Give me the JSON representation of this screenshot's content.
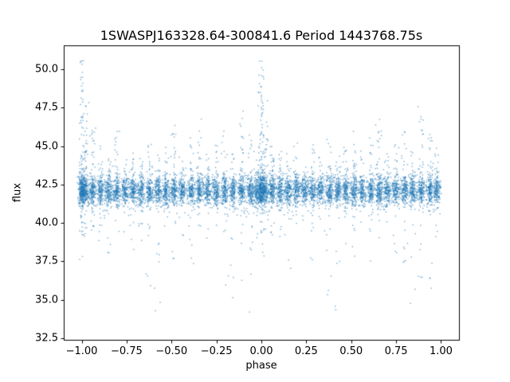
{
  "chart_data": {
    "type": "scatter",
    "title": "1SWASPJ163328.64-300841.6 Period 1443768.75s",
    "xlabel": "phase",
    "ylabel": "flux",
    "xlim": [
      -1.1,
      1.1
    ],
    "ylim": [
      32.4,
      51.5
    ],
    "grid": false,
    "legend": "none",
    "marker_color": "#1f77b4",
    "marker_alpha": 0.55,
    "marker_size_px": 1.5,
    "xticks": [
      {
        "value": -1.0,
        "label": "−1.00"
      },
      {
        "value": -0.75,
        "label": "−0.75"
      },
      {
        "value": -0.5,
        "label": "−0.50"
      },
      {
        "value": -0.25,
        "label": "−0.25"
      },
      {
        "value": 0.0,
        "label": "0.00"
      },
      {
        "value": 0.25,
        "label": "0.25"
      },
      {
        "value": 0.5,
        "label": "0.50"
      },
      {
        "value": 0.75,
        "label": "0.75"
      },
      {
        "value": 1.0,
        "label": "1.00"
      }
    ],
    "yticks": [
      {
        "value": 32.5,
        "label": "32.5"
      },
      {
        "value": 35.0,
        "label": "35.0"
      },
      {
        "value": 37.5,
        "label": "37.5"
      },
      {
        "value": 40.0,
        "label": "40.0"
      },
      {
        "value": 42.5,
        "label": "42.5"
      },
      {
        "value": 45.0,
        "label": "45.0"
      },
      {
        "value": 47.5,
        "label": "47.5"
      },
      {
        "value": 50.0,
        "label": "50.0"
      }
    ],
    "scatter_model": {
      "description": "Phase-folded light curve; each night of observations forms a vertical stripe of points around baseline flux ~42.1, duplicated at phase-1. Largest flare stripe at phase 0 reaches flux ~50.6; faint low outliers reach ~33.5.",
      "seed": 42,
      "baseline_mu": 42.1,
      "baseline_sigma": 0.45,
      "phase_jitter": 0.01,
      "tail_jitter": 0.008,
      "duplicate_offset": -1,
      "stripes": [
        {
          "p": 0.0,
          "n": 260,
          "hi": 50.6,
          "lo": 37.6,
          "hin": 70,
          "lon": 26
        },
        {
          "p": 0.022,
          "n": 150,
          "hi": 48.0,
          "lo": 39.0,
          "hin": 30,
          "lon": 10
        },
        {
          "p": 0.06,
          "n": 150,
          "hi": 46.3,
          "lo": 39.2,
          "hin": 22,
          "lon": 9
        },
        {
          "p": 0.105,
          "n": 140,
          "hi": 45.0,
          "lo": 38.6,
          "hin": 14,
          "lon": 8
        },
        {
          "p": 0.15,
          "n": 140,
          "hi": 44.6,
          "lo": 36.8,
          "hin": 12,
          "lon": 10
        },
        {
          "p": 0.195,
          "n": 140,
          "hi": 46.0,
          "lo": 38.4,
          "hin": 18,
          "lon": 8
        },
        {
          "p": 0.24,
          "n": 135,
          "hi": 44.2,
          "lo": 39.4,
          "hin": 10,
          "lon": 6
        },
        {
          "p": 0.285,
          "n": 140,
          "hi": 45.1,
          "lo": 37.6,
          "hin": 14,
          "lon": 8
        },
        {
          "p": 0.33,
          "n": 135,
          "hi": 44.3,
          "lo": 38.8,
          "hin": 10,
          "lon": 6
        },
        {
          "p": 0.378,
          "n": 140,
          "hi": 45.8,
          "lo": 35.2,
          "hin": 16,
          "lon": 10
        },
        {
          "p": 0.425,
          "n": 140,
          "hi": 44.6,
          "lo": 33.7,
          "hin": 12,
          "lon": 9
        },
        {
          "p": 0.47,
          "n": 140,
          "hi": 45.3,
          "lo": 38.1,
          "hin": 14,
          "lon": 7
        },
        {
          "p": 0.515,
          "n": 145,
          "hi": 46.4,
          "lo": 37.2,
          "hin": 18,
          "lon": 8
        },
        {
          "p": 0.56,
          "n": 135,
          "hi": 44.8,
          "lo": 38.6,
          "hin": 12,
          "lon": 6
        },
        {
          "p": 0.61,
          "n": 140,
          "hi": 45.6,
          "lo": 36.6,
          "hin": 14,
          "lon": 8
        },
        {
          "p": 0.655,
          "n": 145,
          "hi": 46.8,
          "lo": 38.1,
          "hin": 20,
          "lon": 7
        },
        {
          "p": 0.7,
          "n": 135,
          "hi": 44.7,
          "lo": 39.0,
          "hin": 10,
          "lon": 6
        },
        {
          "p": 0.748,
          "n": 140,
          "hi": 45.3,
          "lo": 37.9,
          "hin": 13,
          "lon": 7
        },
        {
          "p": 0.795,
          "n": 140,
          "hi": 46.1,
          "lo": 35.6,
          "hin": 15,
          "lon": 9
        },
        {
          "p": 0.842,
          "n": 140,
          "hi": 44.9,
          "lo": 34.3,
          "hin": 11,
          "lon": 9
        },
        {
          "p": 0.89,
          "n": 145,
          "hi": 47.6,
          "lo": 36.1,
          "hin": 22,
          "lon": 9
        },
        {
          "p": 0.94,
          "n": 145,
          "hi": 46.2,
          "lo": 33.5,
          "hin": 16,
          "lon": 12
        },
        {
          "p": 0.975,
          "n": 140,
          "hi": 45.0,
          "lo": 37.0,
          "hin": 12,
          "lon": 8
        }
      ],
      "background": {
        "n": 900,
        "flux_mu": 42.05,
        "flux_sigma": 0.6,
        "phase_min": -1.01,
        "phase_max": 1.005
      }
    }
  }
}
